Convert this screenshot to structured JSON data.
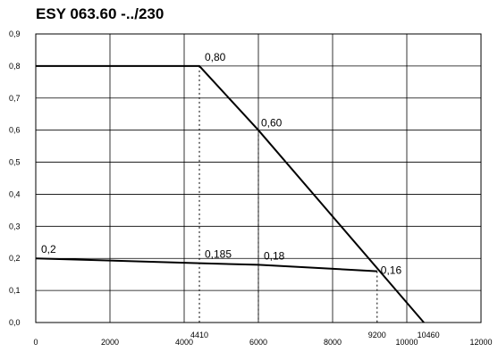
{
  "chart_data": {
    "type": "line",
    "title": "ESY 063.60 -../230",
    "xlabel": "",
    "ylabel": "",
    "xlim": [
      0,
      12000
    ],
    "ylim": [
      0,
      0.9
    ],
    "grid": true,
    "x_ticks": [
      0,
      2000,
      4000,
      6000,
      8000,
      10000,
      12000
    ],
    "x_tick_labels": [
      "0",
      "2000",
      "4000",
      "6000",
      "8000",
      "10000",
      "12000"
    ],
    "y_ticks": [
      0,
      0.1,
      0.2,
      0.3,
      0.4,
      0.5,
      0.6,
      0.7,
      0.8,
      0.9
    ],
    "y_tick_labels": [
      "0,0",
      "0,1",
      "0,2",
      "0,3",
      "0,4",
      "0,5",
      "0,6",
      "0,7",
      "0,8",
      "0,9"
    ],
    "extra_x_labels": [
      {
        "x": 4410,
        "label": "4410"
      },
      {
        "x": 9200,
        "label": "9200"
      },
      {
        "x": 10460,
        "label": "10460"
      }
    ],
    "series": [
      {
        "x": [
          0,
          4410,
          6000,
          10460
        ],
        "y": [
          0.8,
          0.8,
          0.6,
          0.0
        ]
      },
      {
        "x": [
          0,
          4410,
          6000,
          9200
        ],
        "y": [
          0.2,
          0.185,
          0.18,
          0.16
        ]
      }
    ],
    "point_labels": [
      {
        "x": 4410,
        "y": 0.8,
        "label": "0,80"
      },
      {
        "x": 6000,
        "y": 0.6,
        "label": "0,60"
      },
      {
        "x": 0,
        "y": 0.2,
        "label": "0,2"
      },
      {
        "x": 4410,
        "y": 0.185,
        "label": "0,185"
      },
      {
        "x": 6000,
        "y": 0.18,
        "label": "0,18"
      },
      {
        "x": 9200,
        "y": 0.16,
        "label": "0,16"
      }
    ],
    "dashed_verticals": [
      {
        "x": 4410,
        "y_top": 0.8
      },
      {
        "x": 6000,
        "y_top": 0.6
      },
      {
        "x": 9200,
        "y_top": 0.16
      }
    ]
  }
}
